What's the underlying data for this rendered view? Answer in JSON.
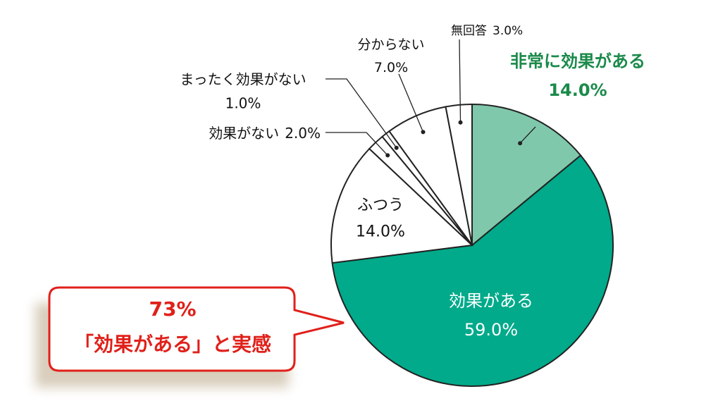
{
  "chart_data": {
    "type": "pie",
    "categories": [
      "非常に効果がある",
      "効果がある",
      "ふつう",
      "効果がない",
      "まったく効果がない",
      "分からない",
      "無回答"
    ],
    "values": [
      14.0,
      59.0,
      14.0,
      2.0,
      1.0,
      7.0,
      3.0
    ],
    "value_labels": [
      "14.0%",
      "59.0%",
      "14.0%",
      "2.0%",
      "1.0%",
      "7.0%",
      "3.0%"
    ],
    "colors": [
      "#80c8ac",
      "#00aa8a",
      "#ffffff",
      "#ffffff",
      "#ffffff",
      "#ffffff",
      "#ffffff"
    ],
    "annotation": [
      "73%",
      "「効果がある」と実感"
    ]
  }
}
